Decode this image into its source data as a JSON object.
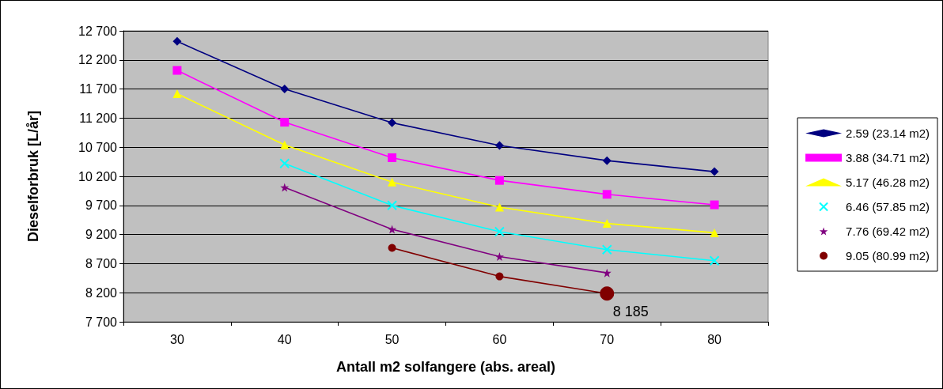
{
  "chart_data": {
    "type": "line",
    "xlabel": "Antall m2 solfangere (abs. areal)",
    "ylabel": "Dieselforbruk [L/år]",
    "categories": [
      "30",
      "40",
      "50",
      "60",
      "70",
      "80"
    ],
    "series": [
      {
        "name": "2.59 (23.14 m2)",
        "color": "#000080",
        "marker": "diamond",
        "values": [
          12520,
          11700,
          11120,
          10730,
          10470,
          10280
        ]
      },
      {
        "name": "3.88 (34.71 m2)",
        "color": "#ff00ff",
        "marker": "square",
        "values": [
          12020,
          11130,
          10520,
          10130,
          9890,
          9710
        ]
      },
      {
        "name": "5.17 (46.28 m2)",
        "color": "#ffff00",
        "marker": "triangle",
        "values": [
          11620,
          10740,
          10100,
          9670,
          9390,
          9230
        ]
      },
      {
        "name": "6.46 (57.85 m2)",
        "color": "#00ffff",
        "marker": "cross",
        "values": [
          null,
          10420,
          9700,
          9250,
          8940,
          8750
        ]
      },
      {
        "name": "7.76 (69.42 m2)",
        "color": "#800080",
        "marker": "star",
        "values": [
          null,
          10010,
          9290,
          8820,
          8540,
          null
        ]
      },
      {
        "name": "9.05 (80.99 m2)",
        "color": "#800000",
        "marker": "circle",
        "values": [
          null,
          null,
          8970,
          8480,
          8185,
          null
        ],
        "value_labels": [
          null,
          null,
          null,
          null,
          "8 185",
          null
        ]
      }
    ],
    "ylim": [
      7700,
      12700
    ],
    "yticks": [
      {
        "value": 7700,
        "label": "7 700"
      },
      {
        "value": 8200,
        "label": "8 200"
      },
      {
        "value": 8700,
        "label": "8 700"
      },
      {
        "value": 9200,
        "label": "9 200"
      },
      {
        "value": 9700,
        "label": "9 700"
      },
      {
        "value": 10200,
        "label": "10 200"
      },
      {
        "value": 10700,
        "label": "10 700"
      },
      {
        "value": 11200,
        "label": "11 200"
      },
      {
        "value": 11700,
        "label": "11 700"
      },
      {
        "value": 12200,
        "label": "12 200"
      },
      {
        "value": 12700,
        "label": "12 700"
      }
    ],
    "grid": "y",
    "legend": "right"
  }
}
